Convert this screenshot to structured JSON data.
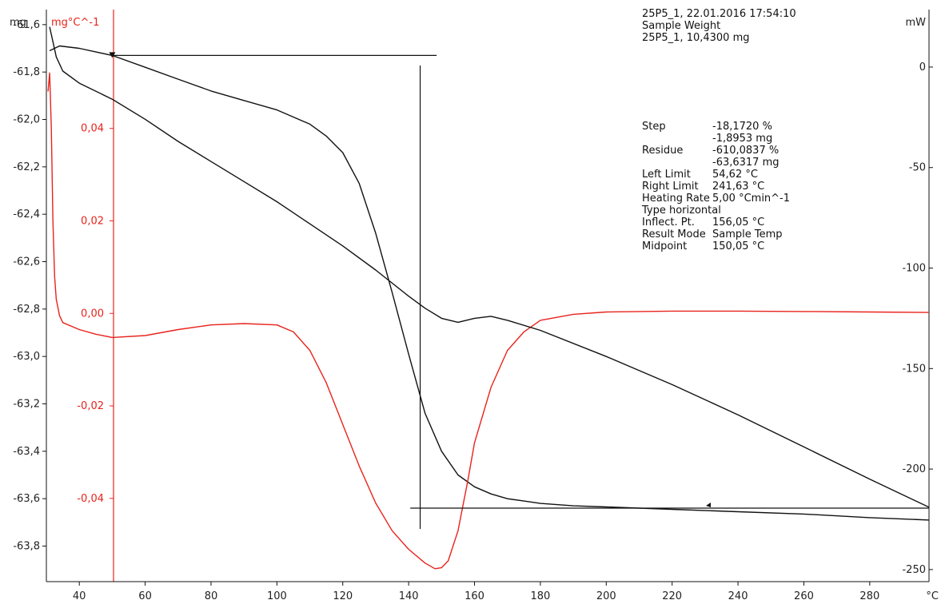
{
  "header": {
    "line1": "25P5_1, 22.01.2016 17:54:10",
    "line2": "Sample Weight",
    "line3": "25P5_1, 10,4300 mg"
  },
  "results": [
    {
      "label": "Step",
      "value": "-18,1720 %"
    },
    {
      "label": "",
      "value": "-1,8953 mg"
    },
    {
      "label": "Residue",
      "value": "-610,0837 %"
    },
    {
      "label": "",
      "value": "-63,6317 mg"
    },
    {
      "label": "Left Limit",
      "value": "54,62 °C"
    },
    {
      "label": "Right Limit",
      "value": "241,63 °C"
    },
    {
      "label": "Heating Rate",
      "value": "5,00 °Cmin^-1"
    },
    {
      "label": "Type horizontal",
      "value": ""
    },
    {
      "label": "Inflect. Pt.",
      "value": "156,05 °C"
    },
    {
      "label": "Result Mode",
      "value": "Sample Temp"
    },
    {
      "label": "Midpoint",
      "value": "150,05 °C"
    }
  ],
  "chart_data": {
    "type": "line",
    "colors": {
      "tg": "#111111",
      "dtg": "#e8231c",
      "dsc": "#111111",
      "axis": "#111111"
    },
    "axes": {
      "x": {
        "unit": "°C",
        "ticks": [
          "40",
          "60",
          "80",
          "100",
          "120",
          "140",
          "160",
          "180",
          "200",
          "220",
          "240",
          "260",
          "280"
        ],
        "range": [
          30,
          298
        ]
      },
      "y_left": {
        "unit": "mg",
        "ticks": [
          "-61,6",
          "-61,8",
          "-62,0",
          "-62,2",
          "-62,4",
          "-62,6",
          "-62,8",
          "-63,0",
          "-63,2",
          "-63,4",
          "-63,6",
          "-63,8"
        ],
        "range": [
          -63.95,
          -61.55
        ]
      },
      "y_dtg": {
        "unit": "mg°C^-1",
        "ticks": [
          "0,04",
          "0,02",
          "0,00",
          "-0,02",
          "-0,04"
        ],
        "range": [
          -0.058,
          0.065
        ]
      },
      "y_right": {
        "unit": "mW",
        "ticks": [
          "0",
          "-50",
          "-100",
          "-150",
          "-200",
          "-250"
        ],
        "range": [
          -256,
          27
        ]
      }
    },
    "markers": {
      "left_limit_x": 50,
      "step_top_mg": -61.73,
      "step_bottom_mg": -63.64,
      "midpoint_x": 143.5
    },
    "series": [
      {
        "key": "tg",
        "unit": "mg",
        "x": [
          31,
          34,
          40,
          50,
          60,
          70,
          80,
          90,
          100,
          110,
          115,
          120,
          125,
          130,
          135,
          140,
          145,
          150,
          155,
          160,
          165,
          170,
          175,
          180,
          190,
          200,
          220,
          240,
          260,
          280,
          298
        ],
        "y": [
          -61.71,
          -61.69,
          -61.7,
          -61.73,
          -61.78,
          -61.83,
          -61.88,
          -61.92,
          -61.96,
          -62.02,
          -62.07,
          -62.14,
          -62.27,
          -62.48,
          -62.73,
          -62.99,
          -63.24,
          -63.4,
          -63.5,
          -63.55,
          -63.58,
          -63.6,
          -63.61,
          -63.62,
          -63.63,
          -63.635,
          -63.645,
          -63.655,
          -63.665,
          -63.68,
          -63.69
        ]
      },
      {
        "key": "dtg",
        "unit": "mg°C^-1",
        "x": [
          30.5,
          31,
          31.5,
          32,
          32.5,
          33,
          34,
          35,
          40,
          45,
          50,
          60,
          70,
          80,
          90,
          100,
          105,
          110,
          115,
          120,
          125,
          130,
          135,
          140,
          145,
          148,
          150,
          152,
          155,
          158,
          160,
          165,
          170,
          175,
          180,
          190,
          200,
          220,
          240,
          260,
          280,
          298
        ],
        "y": [
          0.048,
          0.052,
          0.04,
          0.02,
          0.008,
          0.003,
          -0.0005,
          -0.002,
          -0.0035,
          -0.0045,
          -0.0052,
          -0.0048,
          -0.0035,
          -0.0025,
          -0.0022,
          -0.0025,
          -0.004,
          -0.008,
          -0.015,
          -0.024,
          -0.033,
          -0.041,
          -0.047,
          -0.051,
          -0.054,
          -0.0552,
          -0.055,
          -0.0535,
          -0.047,
          -0.036,
          -0.028,
          -0.016,
          -0.008,
          -0.004,
          -0.0015,
          -0.0002,
          0.0003,
          0.0005,
          0.0005,
          0.0004,
          0.0003,
          0.0002
        ]
      },
      {
        "key": "dsc",
        "unit": "mW",
        "x": [
          31,
          33,
          35,
          40,
          50,
          60,
          70,
          80,
          90,
          100,
          110,
          120,
          130,
          140,
          145,
          150,
          155,
          160,
          165,
          170,
          180,
          200,
          220,
          240,
          260,
          280,
          298
        ],
        "y": [
          20,
          5,
          -2,
          -8,
          -16,
          -26,
          -37,
          -47,
          -57,
          -67,
          -78,
          -89,
          -101,
          -114,
          -120,
          -125,
          -127,
          -125,
          -124,
          -126,
          -131,
          -144,
          -158,
          -173,
          -189,
          -205,
          -219
        ]
      }
    ]
  }
}
